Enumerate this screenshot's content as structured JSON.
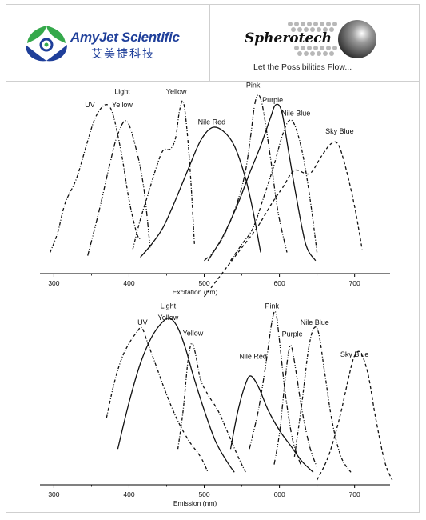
{
  "header": {
    "amyjet": {
      "name": "AmyJet Scientific",
      "name_cn": "艾美捷科技",
      "logo_icon": "amyjet-leaf-logo",
      "color": "#1f3f9a"
    },
    "spherotech": {
      "name": "Spherotech",
      "tagline": "Let the Possibilities Flow...",
      "logo_icon": "grey-sphere-logo"
    }
  },
  "chart_data": [
    {
      "type": "line",
      "xlabel": "Excitation (nm)",
      "xlim": [
        290,
        745
      ],
      "xticks": [
        300,
        400,
        500,
        600,
        700
      ],
      "series": [
        {
          "name": "UV",
          "dash": "4,2,1,2",
          "points": [
            [
              295,
              0.1
            ],
            [
              305,
              0.22
            ],
            [
              315,
              0.4
            ],
            [
              330,
              0.55
            ],
            [
              345,
              0.78
            ],
            [
              355,
              0.92
            ],
            [
              368,
              1.0
            ],
            [
              378,
              0.95
            ],
            [
              390,
              0.7
            ],
            [
              400,
              0.42
            ],
            [
              410,
              0.22
            ],
            [
              415,
              0.18
            ]
          ]
        },
        {
          "name": "Light Yellow",
          "dash": "6,2,1,2,1,2",
          "points": [
            [
              345,
              0.08
            ],
            [
              360,
              0.35
            ],
            [
              375,
              0.65
            ],
            [
              385,
              0.82
            ],
            [
              397,
              0.9
            ],
            [
              410,
              0.72
            ],
            [
              420,
              0.48
            ],
            [
              428,
              0.13
            ]
          ]
        },
        {
          "name": "Yellow",
          "dash": "4,2,1,2",
          "points": [
            [
              405,
              0.12
            ],
            [
              415,
              0.3
            ],
            [
              425,
              0.45
            ],
            [
              435,
              0.6
            ],
            [
              445,
              0.72
            ],
            [
              455,
              0.73
            ],
            [
              462,
              0.8
            ],
            [
              467,
              0.96
            ],
            [
              472,
              1.02
            ],
            [
              477,
              0.85
            ],
            [
              482,
              0.55
            ],
            [
              487,
              0.15
            ]
          ]
        },
        {
          "name": "Nile Red",
          "dash": "",
          "points": [
            [
              415,
              0.07
            ],
            [
              430,
              0.15
            ],
            [
              445,
              0.25
            ],
            [
              460,
              0.4
            ],
            [
              478,
              0.6
            ],
            [
              495,
              0.78
            ],
            [
              510,
              0.86
            ],
            [
              525,
              0.84
            ],
            [
              540,
              0.75
            ],
            [
              555,
              0.55
            ],
            [
              565,
              0.35
            ],
            [
              575,
              0.1
            ]
          ]
        },
        {
          "name": "Pink",
          "dash": "6,2,1,2,1,2",
          "points": [
            [
              500,
              0.05
            ],
            [
              515,
              0.12
            ],
            [
              530,
              0.24
            ],
            [
              545,
              0.42
            ],
            [
              555,
              0.6
            ],
            [
              562,
              0.82
            ],
            [
              567,
              1.0
            ],
            [
              572,
              1.06
            ],
            [
              578,
              0.98
            ],
            [
              588,
              0.68
            ],
            [
              598,
              0.35
            ],
            [
              610,
              0.1
            ]
          ]
        },
        {
          "name": "Purple",
          "dash": "",
          "points": [
            [
              505,
              0.05
            ],
            [
              525,
              0.2
            ],
            [
              545,
              0.4
            ],
            [
              560,
              0.58
            ],
            [
              575,
              0.75
            ],
            [
              588,
              0.92
            ],
            [
              595,
              1.0
            ],
            [
              603,
              0.96
            ],
            [
              612,
              0.72
            ],
            [
              622,
              0.45
            ],
            [
              635,
              0.15
            ],
            [
              648,
              0.05
            ]
          ]
        },
        {
          "name": "Nile Blue",
          "dash": "4,2,1,2",
          "points": [
            [
              535,
              0.05
            ],
            [
              550,
              0.15
            ],
            [
              565,
              0.25
            ],
            [
              580,
              0.45
            ],
            [
              592,
              0.62
            ],
            [
              603,
              0.8
            ],
            [
              612,
              0.9
            ],
            [
              620,
              0.88
            ],
            [
              630,
              0.72
            ],
            [
              640,
              0.45
            ],
            [
              650,
              0.1
            ]
          ]
        },
        {
          "name": "Sky Blue",
          "dash": "4,3",
          "points": [
            [
              500,
              -0.17
            ],
            [
              520,
              -0.05
            ],
            [
              545,
              0.1
            ],
            [
              570,
              0.25
            ],
            [
              590,
              0.4
            ],
            [
              605,
              0.5
            ],
            [
              620,
              0.6
            ],
            [
              640,
              0.58
            ],
            [
              655,
              0.68
            ],
            [
              668,
              0.76
            ],
            [
              678,
              0.76
            ],
            [
              688,
              0.62
            ],
            [
              700,
              0.38
            ],
            [
              710,
              0.12
            ]
          ]
        }
      ],
      "annotations": [
        {
          "text": "UV",
          "x": 348,
          "y": 0.985
        },
        {
          "text": "Light",
          "x": 391,
          "y": 1.065
        },
        {
          "text": "Yellow",
          "x": 391,
          "y": 0.985
        },
        {
          "text": "Yellow",
          "x": 463,
          "y": 1.065
        },
        {
          "text": "Nile Red",
          "x": 510,
          "y": 0.88
        },
        {
          "text": "Pink",
          "x": 565,
          "y": 1.105
        },
        {
          "text": "Purple",
          "x": 591,
          "y": 1.015
        },
        {
          "text": "Nile Blue",
          "x": 622,
          "y": 0.935
        },
        {
          "text": "Sky Blue",
          "x": 680,
          "y": 0.825
        }
      ]
    },
    {
      "type": "line",
      "xlabel": "Emission (nm)",
      "xlim": [
        290,
        745
      ],
      "xticks": [
        300,
        400,
        500,
        600,
        700
      ],
      "series": [
        {
          "name": "UV",
          "dash": "4,2,1,2",
          "points": [
            [
              370,
              0.4
            ],
            [
              380,
              0.62
            ],
            [
              390,
              0.78
            ],
            [
              400,
              0.88
            ],
            [
              410,
              0.95
            ],
            [
              417,
              0.98
            ],
            [
              425,
              0.88
            ],
            [
              435,
              0.75
            ],
            [
              450,
              0.55
            ],
            [
              465,
              0.38
            ],
            [
              480,
              0.25
            ],
            [
              495,
              0.15
            ],
            [
              505,
              0.05
            ]
          ]
        },
        {
          "name": "Light Yellow",
          "dash": "",
          "points": [
            [
              385,
              0.2
            ],
            [
              400,
              0.5
            ],
            [
              415,
              0.75
            ],
            [
              430,
              0.92
            ],
            [
              445,
              1.02
            ],
            [
              455,
              1.04
            ],
            [
              465,
              0.98
            ],
            [
              475,
              0.85
            ],
            [
              485,
              0.68
            ],
            [
              500,
              0.45
            ],
            [
              515,
              0.25
            ],
            [
              530,
              0.12
            ],
            [
              540,
              0.05
            ]
          ]
        },
        {
          "name": "Yellow",
          "dash": "4,2,1,2",
          "points": [
            [
              465,
              0.2
            ],
            [
              472,
              0.45
            ],
            [
              478,
              0.75
            ],
            [
              483,
              0.88
            ],
            [
              488,
              0.82
            ],
            [
              495,
              0.65
            ],
            [
              505,
              0.55
            ],
            [
              518,
              0.45
            ],
            [
              530,
              0.32
            ],
            [
              545,
              0.15
            ],
            [
              555,
              0.05
            ]
          ]
        },
        {
          "name": "Nile Red",
          "dash": "",
          "points": [
            [
              535,
              0.2
            ],
            [
              545,
              0.45
            ],
            [
              555,
              0.62
            ],
            [
              562,
              0.67
            ],
            [
              572,
              0.6
            ],
            [
              585,
              0.45
            ],
            [
              600,
              0.32
            ],
            [
              615,
              0.22
            ],
            [
              630,
              0.12
            ],
            [
              645,
              0.05
            ]
          ]
        },
        {
          "name": "Pink",
          "dash": "6,2,1,2,1,2",
          "points": [
            [
              560,
              0.2
            ],
            [
              572,
              0.45
            ],
            [
              582,
              0.75
            ],
            [
              590,
              1.02
            ],
            [
              595,
              1.08
            ],
            [
              600,
              0.9
            ],
            [
              608,
              0.55
            ],
            [
              618,
              0.25
            ],
            [
              630,
              0.08
            ]
          ]
        },
        {
          "name": "Purple",
          "dash": "6,2,1,2,1,2",
          "points": [
            [
              593,
              0.1
            ],
            [
              600,
              0.3
            ],
            [
              607,
              0.62
            ],
            [
              612,
              0.82
            ],
            [
              616,
              0.86
            ],
            [
              622,
              0.7
            ],
            [
              630,
              0.45
            ],
            [
              640,
              0.22
            ],
            [
              650,
              0.08
            ]
          ]
        },
        {
          "name": "Nile Blue",
          "dash": "4,2,1,2",
          "points": [
            [
              620,
              0.15
            ],
            [
              630,
              0.5
            ],
            [
              638,
              0.82
            ],
            [
              645,
              0.97
            ],
            [
              652,
              0.95
            ],
            [
              660,
              0.7
            ],
            [
              670,
              0.38
            ],
            [
              682,
              0.15
            ],
            [
              695,
              0.05
            ]
          ]
        },
        {
          "name": "Sky Blue",
          "dash": "4,3",
          "points": [
            [
              650,
              0.0
            ],
            [
              665,
              0.15
            ],
            [
              680,
              0.4
            ],
            [
              693,
              0.68
            ],
            [
              700,
              0.8
            ],
            [
              708,
              0.82
            ],
            [
              718,
              0.68
            ],
            [
              728,
              0.4
            ],
            [
              740,
              0.12
            ],
            [
              750,
              0.0
            ]
          ]
        }
      ],
      "annotations": [
        {
          "text": "UV",
          "x": 418,
          "y": 1.0
        },
        {
          "text": "Light",
          "x": 452,
          "y": 1.105
        },
        {
          "text": "Yellow",
          "x": 452,
          "y": 1.03
        },
        {
          "text": "Yellow",
          "x": 485,
          "y": 0.93
        },
        {
          "text": "Nile Red",
          "x": 565,
          "y": 0.78
        },
        {
          "text": "Pink",
          "x": 590,
          "y": 1.105
        },
        {
          "text": "Purple",
          "x": 617,
          "y": 0.925
        },
        {
          "text": "Nile Blue",
          "x": 647,
          "y": 1.0
        },
        {
          "text": "Sky Blue",
          "x": 700,
          "y": 0.795
        }
      ]
    }
  ]
}
